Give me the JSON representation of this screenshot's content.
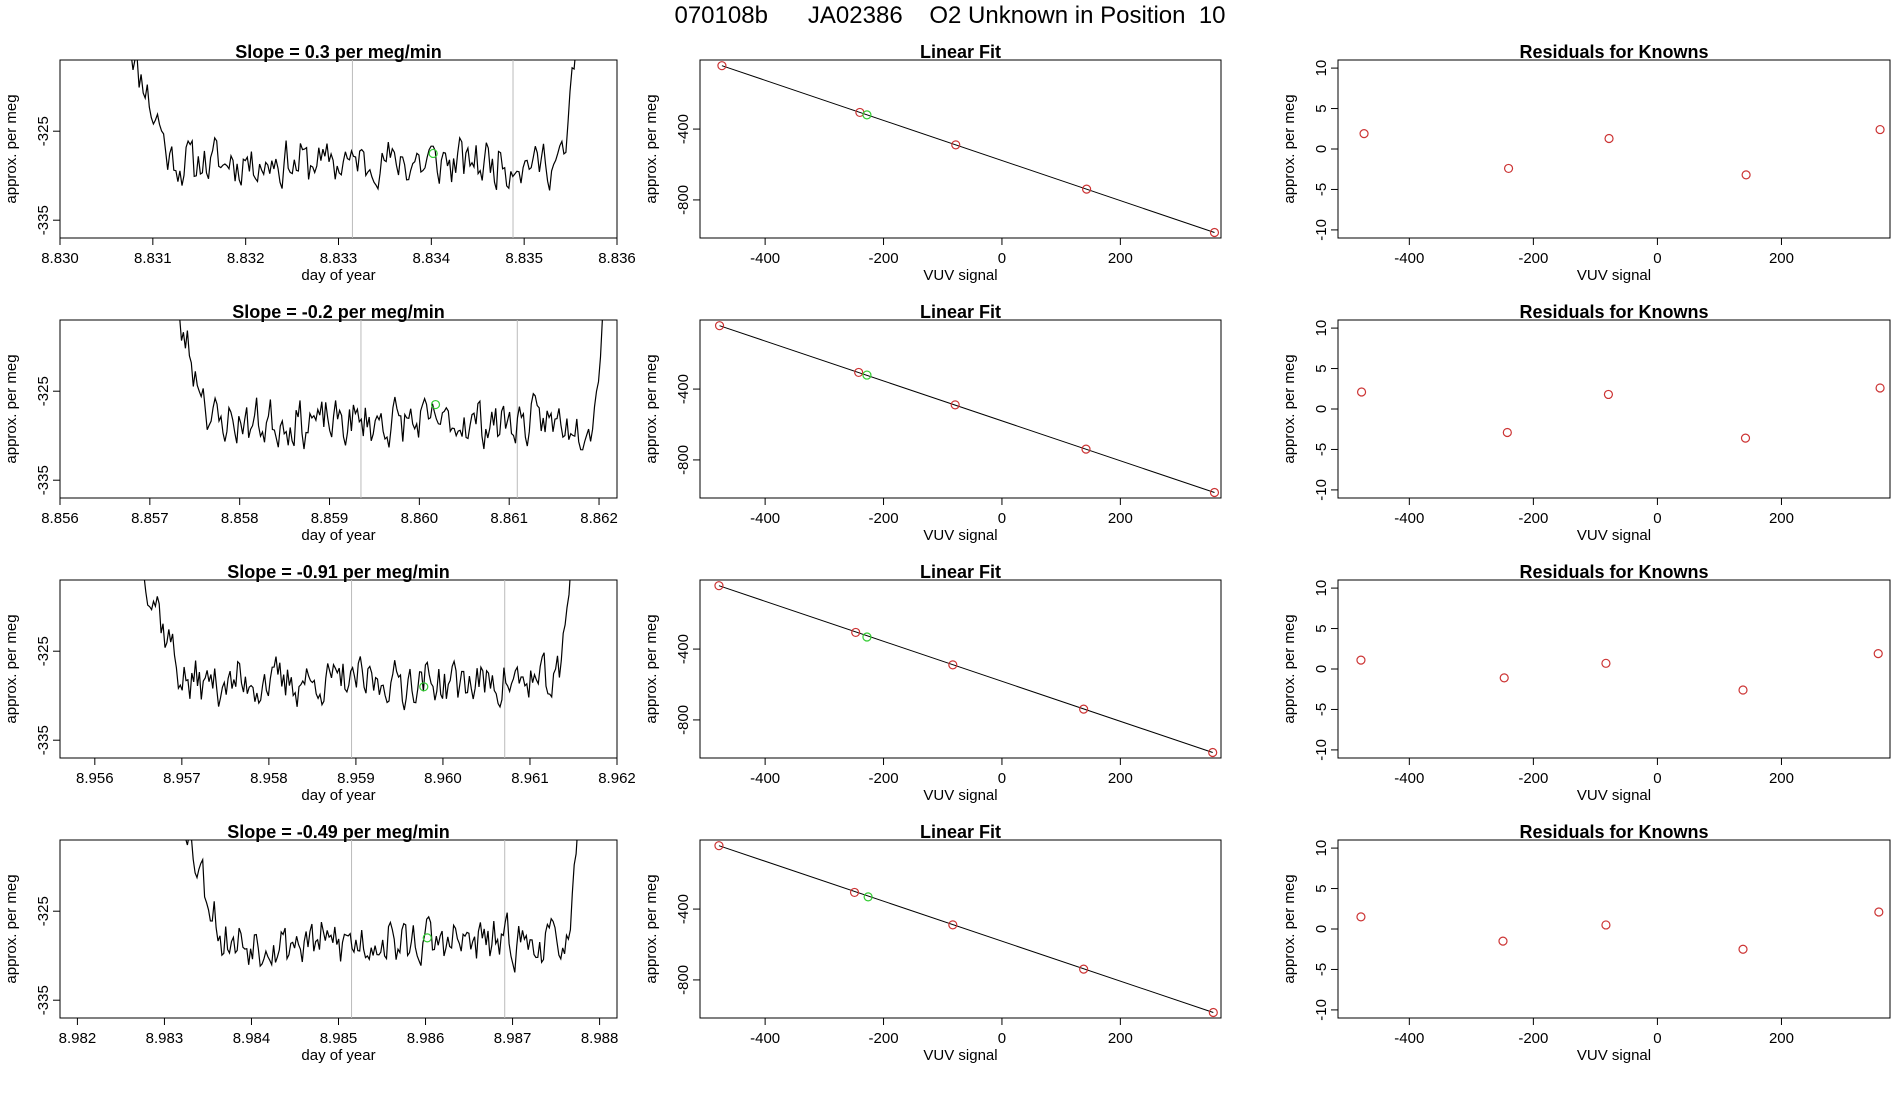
{
  "header": {
    "title": "070108b      JA02386    O2 Unknown in Position  10"
  },
  "colors": {
    "axis": "#000000",
    "trace": "#000000",
    "marker_vline": "#bbbbbb",
    "known": "#cc3333",
    "unknown": "#33cc33"
  },
  "chart_data": [
    {
      "type": "line",
      "panel": "time-series-1",
      "title": "Slope =  0.3  per meg/min",
      "xlabel": "day of year",
      "ylabel": "approx. per meg",
      "xlim": [
        8.83,
        8.836
      ],
      "ylim": [
        -337,
        -317
      ],
      "xticks": [
        "8.830",
        "8.831",
        "8.832",
        "8.833",
        "8.834",
        "8.835",
        "8.836"
      ],
      "yticks": [
        "-325",
        "-335"
      ],
      "segment_markers": [
        8.83315,
        8.83488
      ],
      "trace_start": 8.83072,
      "trace_end": 8.83562,
      "step": 2.2e-05,
      "seed": 11,
      "unknown_point": {
        "x": 8.83402,
        "y": -327.5
      }
    },
    {
      "type": "line",
      "panel": "time-series-2",
      "title": "Slope =  -0.2  per meg/min",
      "xlabel": "day of year",
      "ylabel": "approx. per meg",
      "xlim": [
        8.856,
        8.8622
      ],
      "ylim": [
        -337,
        -317
      ],
      "xticks": [
        "8.856",
        "8.857",
        "8.858",
        "8.859",
        "8.860",
        "8.861",
        "8.862"
      ],
      "yticks": [
        "-325",
        "-335"
      ],
      "segment_markers": [
        8.85935,
        8.86109
      ],
      "trace_start": 8.85722,
      "trace_end": 8.86212,
      "step": 2.2e-05,
      "seed": 23,
      "unknown_point": {
        "x": 8.86018,
        "y": -326.5
      }
    },
    {
      "type": "line",
      "panel": "time-series-3",
      "title": "Slope =  -0.91  per meg/min",
      "xlabel": "day of year",
      "ylabel": "approx. per meg",
      "xlim": [
        8.9556,
        8.962
      ],
      "ylim": [
        -337,
        -317
      ],
      "xticks": [
        "8.956",
        "8.957",
        "8.958",
        "8.959",
        "8.960",
        "8.961",
        "8.962"
      ],
      "yticks": [
        "-325",
        "-335"
      ],
      "segment_markers": [
        8.95895,
        8.96071
      ],
      "trace_start": 8.95652,
      "trace_end": 8.96152,
      "step": 2.2e-05,
      "seed": 37,
      "unknown_point": {
        "x": 8.95978,
        "y": -329
      }
    },
    {
      "type": "line",
      "panel": "time-series-4",
      "title": "Slope =  -0.49  per meg/min",
      "xlabel": "day of year",
      "ylabel": "approx. per meg",
      "xlim": [
        8.9818,
        8.9882
      ],
      "ylim": [
        -337,
        -317
      ],
      "xticks": [
        "8.982",
        "8.983",
        "8.984",
        "8.985",
        "8.986",
        "8.987",
        "8.988"
      ],
      "yticks": [
        "-325",
        "-335"
      ],
      "segment_markers": [
        8.98515,
        8.98691
      ],
      "trace_start": 8.98322,
      "trace_end": 8.98782,
      "step": 2.2e-05,
      "seed": 53,
      "unknown_point": {
        "x": 8.98602,
        "y": -328
      }
    },
    {
      "type": "scatter",
      "panel": "linear-fit-1",
      "title": "Linear Fit",
      "xlabel": "VUV signal",
      "ylabel": "approx. per meg",
      "xlim": [
        -510,
        370
      ],
      "ylim": [
        -1015,
        -10
      ],
      "xticks": [
        -400,
        -200,
        0,
        200
      ],
      "yticks": [
        -400,
        -800
      ],
      "fit_line": {
        "x": [
          -473,
          359
        ],
        "y": [
          -42,
          -984
        ]
      },
      "knowns": {
        "x": [
          -473,
          -240,
          -78,
          143,
          359
        ],
        "y": [
          -42,
          -306,
          -489,
          -739,
          -984
        ]
      },
      "unknown": {
        "x": -228,
        "y": -320
      }
    },
    {
      "type": "scatter",
      "panel": "linear-fit-2",
      "title": "Linear Fit",
      "xlabel": "VUV signal",
      "ylabel": "approx. per meg",
      "xlim": [
        -510,
        370
      ],
      "ylim": [
        -1015,
        -10
      ],
      "xticks": [
        -400,
        -200,
        0,
        200
      ],
      "yticks": [
        -400,
        -800
      ],
      "fit_line": {
        "x": [
          -477,
          359
        ],
        "y": [
          -42,
          -984
        ]
      },
      "knowns": {
        "x": [
          -477,
          -242,
          -79,
          142,
          359
        ],
        "y": [
          -42,
          -306,
          -489,
          -739,
          -984
        ]
      },
      "unknown": {
        "x": -228,
        "y": -321
      }
    },
    {
      "type": "scatter",
      "panel": "linear-fit-3",
      "title": "Linear Fit",
      "xlabel": "VUV signal",
      "ylabel": "approx. per meg",
      "xlim": [
        -510,
        370
      ],
      "ylim": [
        -1015,
        -10
      ],
      "xticks": [
        -400,
        -200,
        0,
        200
      ],
      "yticks": [
        -400,
        -800
      ],
      "fit_line": {
        "x": [
          -478,
          356
        ],
        "y": [
          -42,
          -984
        ]
      },
      "knowns": {
        "x": [
          -478,
          -247,
          -83,
          138,
          356
        ],
        "y": [
          -42,
          -306,
          -489,
          -739,
          -984
        ]
      },
      "unknown": {
        "x": -228,
        "y": -332
      }
    },
    {
      "type": "scatter",
      "panel": "linear-fit-4",
      "title": "Linear Fit",
      "xlabel": "VUV signal",
      "ylabel": "approx. per meg",
      "xlim": [
        -510,
        370
      ],
      "ylim": [
        -1015,
        -10
      ],
      "xticks": [
        -400,
        -200,
        0,
        200
      ],
      "yticks": [
        -400,
        -800
      ],
      "fit_line": {
        "x": [
          -478,
          357
        ],
        "y": [
          -42,
          -984
        ]
      },
      "knowns": {
        "x": [
          -478,
          -249,
          -83,
          138,
          357
        ],
        "y": [
          -42,
          -306,
          -489,
          -739,
          -984
        ]
      },
      "unknown": {
        "x": -226,
        "y": -331
      }
    },
    {
      "type": "scatter",
      "panel": "residuals-1",
      "title": "Residuals for Knowns",
      "xlabel": "VUV signal",
      "ylabel": "approx. per meg",
      "xlim": [
        -515,
        375
      ],
      "ylim": [
        -11,
        11
      ],
      "xticks": [
        -400,
        -200,
        0,
        200
      ],
      "yticks": [
        10,
        5,
        0,
        -5,
        -10
      ],
      "knowns": {
        "x": [
          -473,
          -240,
          -78,
          143,
          359
        ],
        "y": [
          1.9,
          -2.4,
          1.3,
          -3.2,
          2.4
        ]
      }
    },
    {
      "type": "scatter",
      "panel": "residuals-2",
      "title": "Residuals for Knowns",
      "xlabel": "VUV signal",
      "ylabel": "approx. per meg",
      "xlim": [
        -515,
        375
      ],
      "ylim": [
        -11,
        11
      ],
      "xticks": [
        -400,
        -200,
        0,
        200
      ],
      "yticks": [
        10,
        5,
        0,
        -5,
        -10
      ],
      "knowns": {
        "x": [
          -477,
          -242,
          -79,
          142,
          359
        ],
        "y": [
          2.1,
          -2.9,
          1.8,
          -3.6,
          2.6
        ]
      }
    },
    {
      "type": "scatter",
      "panel": "residuals-3",
      "title": "Residuals for Knowns",
      "xlabel": "VUV signal",
      "ylabel": "approx. per meg",
      "xlim": [
        -515,
        375
      ],
      "ylim": [
        -11,
        11
      ],
      "xticks": [
        -400,
        -200,
        0,
        200
      ],
      "yticks": [
        10,
        5,
        0,
        -5,
        -10
      ],
      "knowns": {
        "x": [
          -478,
          -247,
          -83,
          138,
          356
        ],
        "y": [
          1.1,
          -1.1,
          0.7,
          -2.6,
          1.9
        ]
      }
    },
    {
      "type": "scatter",
      "panel": "residuals-4",
      "title": "Residuals for Knowns",
      "xlabel": "VUV signal",
      "ylabel": "approx. per meg",
      "xlim": [
        -515,
        375
      ],
      "ylim": [
        -11,
        11
      ],
      "xticks": [
        -400,
        -200,
        0,
        200
      ],
      "yticks": [
        10,
        5,
        0,
        -5,
        -10
      ],
      "knowns": {
        "x": [
          -478,
          -249,
          -83,
          138,
          357
        ],
        "y": [
          1.5,
          -1.5,
          0.5,
          -2.5,
          2.1
        ]
      }
    }
  ]
}
